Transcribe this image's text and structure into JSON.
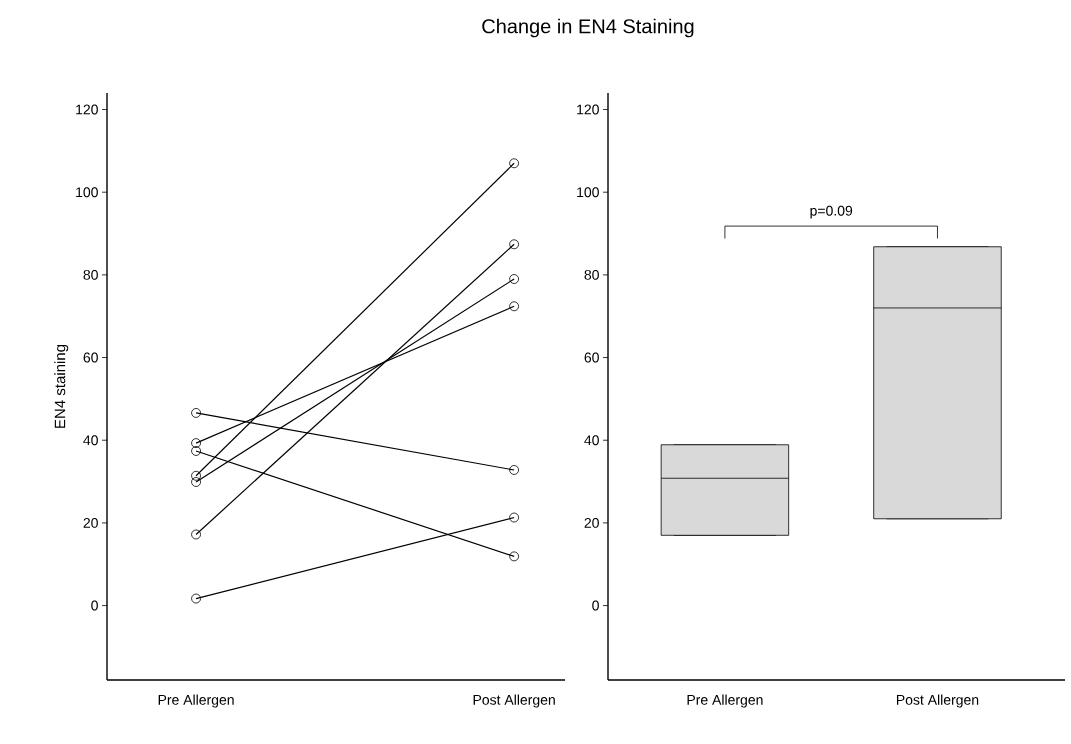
{
  "chart_data": [
    {
      "type": "line",
      "title": "Change in EN4 Staining",
      "ylabel": "EN4 staining",
      "categories": [
        "Pre Allergen",
        "Post Allergen"
      ],
      "ylim": [
        -18,
        124
      ],
      "yticks": [
        0,
        20,
        40,
        60,
        80,
        100,
        120
      ],
      "marker": "circle",
      "grid": false,
      "series": [
        {
          "color": "#000000",
          "values": [
            46.6,
            32.8
          ]
        },
        {
          "color": "#000000",
          "values": [
            39.3,
            72.4
          ]
        },
        {
          "color": "#000000",
          "values": [
            37.4,
            11.9
          ]
        },
        {
          "color": "#000000",
          "values": [
            31.4,
            107
          ]
        },
        {
          "color": "#000000",
          "values": [
            29.9,
            79
          ]
        },
        {
          "color": "#000000",
          "values": [
            17.2,
            87.4
          ]
        },
        {
          "color": "#000000",
          "values": [
            1.7,
            21.3
          ]
        }
      ]
    },
    {
      "type": "box",
      "categories": [
        "Pre Allergen",
        "Post Allergen"
      ],
      "ylim": [
        -18,
        124
      ],
      "yticks": [
        0,
        20,
        40,
        60,
        80,
        100,
        120
      ],
      "grid": false,
      "color": "#d9d9d9",
      "annotations": [
        "p=0.09"
      ],
      "boxes": [
        {
          "low": 17,
          "q1": 17,
          "median": 30.8,
          "q3": 38.9,
          "high": 38.9
        },
        {
          "low": 21,
          "q1": 21,
          "median": 72,
          "q3": 86.8,
          "high": 86.8
        }
      ]
    }
  ]
}
